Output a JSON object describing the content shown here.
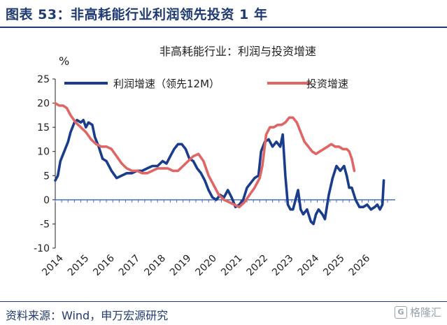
{
  "header": {
    "figure_title": "图表 53：非高耗能行业利润领先投资 1 年"
  },
  "footer": {
    "source": "资料来源：Wind，申万宏源研究",
    "watermark": "格隆汇"
  },
  "colors": {
    "title": "#1f3a73",
    "profit": "#1a3c8c",
    "invest": "#e06666",
    "axis": "#4472c4"
  },
  "chart_data": {
    "type": "line",
    "title": "非高耗能行业：利润与投资增速",
    "ylabel": "%",
    "ylim": [
      -10,
      25
    ],
    "yticks": [
      25,
      20,
      15,
      10,
      5,
      0,
      -5,
      -10
    ],
    "xlim": [
      2014,
      2027.3
    ],
    "xticks": [
      "2014",
      "2015",
      "2016",
      "2017",
      "2018",
      "2019",
      "2020",
      "2021",
      "2022",
      "2023",
      "2024",
      "2025",
      "2026"
    ],
    "legend_position": "top",
    "series": [
      {
        "name": "利润增速（领先12M）",
        "x": [
          2014.0,
          2014.1,
          2014.2,
          2014.35,
          2014.5,
          2014.6,
          2014.75,
          2014.85,
          2015.0,
          2015.1,
          2015.2,
          2015.3,
          2015.45,
          2015.55,
          2015.7,
          2015.85,
          2016.0,
          2016.2,
          2016.4,
          2016.6,
          2016.8,
          2017.0,
          2017.2,
          2017.4,
          2017.6,
          2017.8,
          2018.0,
          2018.2,
          2018.35,
          2018.5,
          2018.65,
          2018.8,
          2018.95,
          2019.1,
          2019.25,
          2019.4,
          2019.55,
          2019.7,
          2019.85,
          2020.0,
          2020.15,
          2020.3,
          2020.45,
          2020.6,
          2020.75,
          2020.9,
          2021.05,
          2021.2,
          2021.35,
          2021.5,
          2021.65,
          2021.8,
          2021.95,
          2022.05,
          2022.2,
          2022.35,
          2022.5,
          2022.65,
          2022.8,
          2022.9,
          2023.0,
          2023.1,
          2023.2,
          2023.3,
          2023.4,
          2023.5,
          2023.6,
          2023.7,
          2023.85,
          2024.0,
          2024.1,
          2024.2,
          2024.3,
          2024.45,
          2024.55,
          2024.7,
          2024.85,
          2025.0,
          2025.15,
          2025.3,
          2025.4,
          2025.5,
          2025.6,
          2025.75,
          2025.9,
          2026.05,
          2026.2,
          2026.35,
          2026.5,
          2026.6,
          2026.7,
          2026.8,
          2026.85
        ],
        "values": [
          4,
          5,
          8,
          10,
          12,
          14,
          16,
          16.5,
          16,
          16.5,
          15,
          16,
          15.5,
          13,
          11,
          8.5,
          8,
          6,
          4.5,
          5,
          5.5,
          5.5,
          6,
          6,
          6.5,
          7,
          7,
          8,
          7.5,
          9,
          10.5,
          11.5,
          11.5,
          10.5,
          8.5,
          8,
          6.5,
          5.5,
          4,
          2,
          0.5,
          0,
          1,
          0.5,
          2,
          0.5,
          -1.5,
          -1,
          0,
          2.5,
          3.5,
          4.5,
          5,
          10,
          12,
          12.5,
          11,
          12,
          11,
          13.5,
          5,
          -1,
          -2,
          -2,
          0,
          2,
          -2,
          -3,
          -2,
          -4.5,
          -5,
          -3,
          -2,
          -3,
          -4,
          1,
          4.5,
          7,
          6,
          7,
          5,
          2.5,
          2.5,
          0,
          -1.5,
          -1.5,
          -1,
          -2,
          -1.5,
          -1,
          -2,
          -1,
          4
        ]
      },
      {
        "name": "投资增速",
        "x": [
          2014.0,
          2014.15,
          2014.3,
          2014.45,
          2014.6,
          2014.8,
          2015.0,
          2015.2,
          2015.4,
          2015.6,
          2015.8,
          2016.0,
          2016.2,
          2016.4,
          2016.6,
          2016.8,
          2017.0,
          2017.2,
          2017.4,
          2017.6,
          2017.8,
          2018.0,
          2018.2,
          2018.4,
          2018.6,
          2018.8,
          2019.0,
          2019.2,
          2019.4,
          2019.6,
          2019.8,
          2020.0,
          2020.2,
          2020.4,
          2020.6,
          2020.8,
          2021.0,
          2021.2,
          2021.4,
          2021.6,
          2021.8,
          2022.0,
          2022.1,
          2022.25,
          2022.4,
          2022.55,
          2022.7,
          2022.85,
          2023.0,
          2023.15,
          2023.3,
          2023.45,
          2023.6,
          2023.75,
          2023.9,
          2024.05,
          2024.2,
          2024.35,
          2024.5,
          2024.65,
          2024.8,
          2024.95,
          2025.1,
          2025.25,
          2025.4,
          2025.5,
          2025.6,
          2025.7
        ],
        "values": [
          20,
          19.5,
          19.5,
          19,
          17.5,
          16,
          15,
          14,
          12.5,
          11.5,
          11,
          11,
          10.5,
          9,
          7.5,
          6.5,
          6,
          6,
          5.5,
          5.5,
          6,
          6.5,
          6.5,
          6.5,
          6,
          6,
          7,
          8,
          9,
          9.5,
          8,
          5,
          3,
          1,
          0,
          -0.5,
          -1,
          -1.5,
          -0.5,
          1,
          2.5,
          4.5,
          7,
          13.5,
          15,
          15,
          15.5,
          15.5,
          16,
          17,
          17,
          16,
          14,
          12,
          11,
          10,
          9.5,
          10,
          10.5,
          11,
          11.5,
          11,
          11,
          10.5,
          10.5,
          10,
          8.5,
          6
        ]
      }
    ]
  }
}
